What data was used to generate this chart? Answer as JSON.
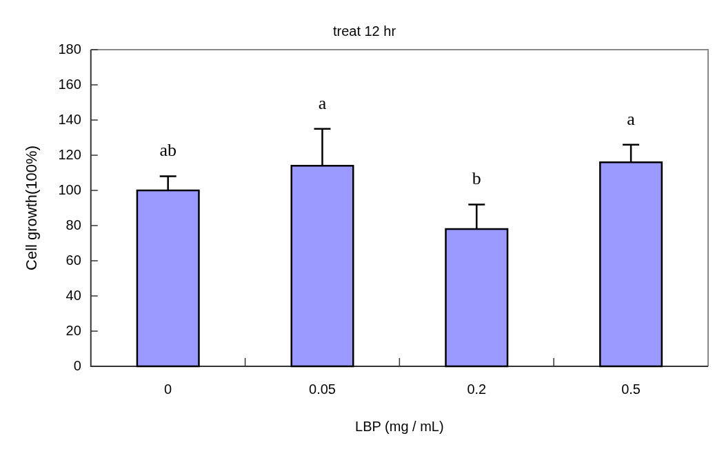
{
  "chart_data": {
    "type": "bar",
    "title": "treat 12 hr",
    "xlabel": "LBP (mg / mL)",
    "ylabel": "Cell growth(100%)",
    "categories": [
      "0",
      "0.05",
      "0.2",
      "0.5"
    ],
    "values": [
      100,
      114,
      78,
      116
    ],
    "errors": [
      [
        100,
        108
      ],
      [
        114,
        135
      ],
      [
        78,
        92
      ],
      [
        116,
        126
      ]
    ],
    "color": "#9999ff",
    "ylim": [
      0,
      180
    ],
    "yticks": [
      0,
      20,
      40,
      60,
      80,
      100,
      120,
      140,
      160,
      180
    ],
    "grid": false,
    "legend": false,
    "annotations": [
      "ab",
      "a",
      "b",
      "a"
    ]
  }
}
